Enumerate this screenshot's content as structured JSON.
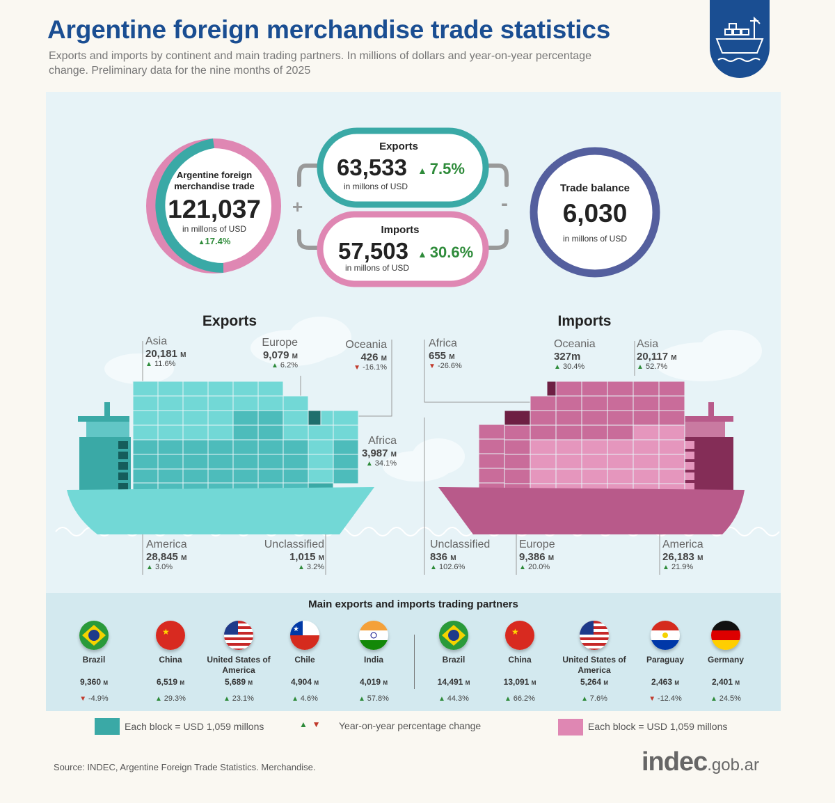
{
  "header": {
    "title": "Argentine foreign merchandise trade statistics",
    "subtitle": "Exports and imports by continent and main trading partners. In millions of dollars and year-on-year percentage change. Preliminary data for the nine months of 2025",
    "badge_icon": "cargo-ship-icon"
  },
  "summary": {
    "total": {
      "label": "Argentine foreign merchandise trade",
      "value": "121,037",
      "unit": "in millons of USD",
      "change": "17.4%"
    },
    "exports": {
      "label": "Exports",
      "value": "63,533",
      "unit": "in millons of USD",
      "change": "7.5%"
    },
    "imports": {
      "label": "Imports",
      "value": "57,503",
      "unit": "in millons of USD",
      "change": "30.6%"
    },
    "balance": {
      "label": "Trade balance",
      "value": "6,030",
      "unit": "in millons of USD"
    },
    "plus_sign": "+",
    "minus_sign": "-",
    "colors": {
      "exports": "#3aa9a6",
      "imports": "#df87b3",
      "balance": "#545f9e"
    }
  },
  "exports_regions": {
    "heading": "Exports",
    "unit_suffix": "M",
    "asia": {
      "name": "Asia",
      "value": "20,181",
      "change": "11.6%"
    },
    "europe": {
      "name": "Europe",
      "value": "9,079",
      "change": "6.2%"
    },
    "oceania": {
      "name": "Oceania",
      "value": "426",
      "change": "-16.1%"
    },
    "africa": {
      "name": "Africa",
      "value": "3,987",
      "change": "34.1%"
    },
    "america": {
      "name": "America",
      "value": "28,845",
      "change": "3.0%"
    },
    "unclassified": {
      "name": "Unclassified",
      "value": "1,015",
      "change": "3.2%"
    }
  },
  "imports_regions": {
    "heading": "Imports",
    "unit_suffix": "M",
    "africa": {
      "name": "Africa",
      "value": "655",
      "change": "-26.6%"
    },
    "oceania": {
      "name": "Oceania",
      "value": "327m",
      "change": "30.4%"
    },
    "asia": {
      "name": "Asia",
      "value": "20,117",
      "change": "52.7%"
    },
    "unclassified": {
      "name": "Unclassified",
      "value": "836",
      "change": "102.6%"
    },
    "europe": {
      "name": "Europe",
      "value": "9,386",
      "change": "20.0%"
    },
    "america": {
      "name": "America",
      "value": "26,183",
      "change": "21.9%"
    }
  },
  "partners": {
    "heading": "Main exports and imports trading partners",
    "unit_suffix": "M",
    "exports": [
      {
        "name": "Brazil",
        "value": "9,360",
        "change": "-4.9%",
        "dir": "down",
        "flag": "brazil-flag-icon"
      },
      {
        "name": "China",
        "value": "6,519",
        "change": "29.3%",
        "dir": "up",
        "flag": "china-flag-icon"
      },
      {
        "name": "United States of America",
        "value": "5,689",
        "change": "23.1%",
        "dir": "up",
        "flag": "usa-flag-icon"
      },
      {
        "name": "Chile",
        "value": "4,904",
        "change": "4.6%",
        "dir": "up",
        "flag": "chile-flag-icon"
      },
      {
        "name": "India",
        "value": "4,019",
        "change": "57.8%",
        "dir": "up",
        "flag": "india-flag-icon"
      }
    ],
    "imports": [
      {
        "name": "Brazil",
        "value": "14,491",
        "change": "44.3%",
        "dir": "up",
        "flag": "brazil-flag-icon"
      },
      {
        "name": "China",
        "value": "13,091",
        "change": "66.2%",
        "dir": "up",
        "flag": "china-flag-icon"
      },
      {
        "name": "United States of America",
        "value": "5,264",
        "change": "7.6%",
        "dir": "up",
        "flag": "usa-flag-icon"
      },
      {
        "name": "Paraguay",
        "value": "2,463",
        "change": "-12.4%",
        "dir": "down",
        "flag": "paraguay-flag-icon"
      },
      {
        "name": "Germany",
        "value": "2,401",
        "change": "24.5%",
        "dir": "up",
        "flag": "germany-flag-icon"
      }
    ]
  },
  "legend": {
    "exports_block": "Each block = USD 1,059 millons",
    "change": "Year-on-year percentage change",
    "imports_block": "Each block = USD 1,059 millons"
  },
  "footer": {
    "source": "Source: INDEC, Argentine Foreign Trade Statistics. Merchandise.",
    "logo_main": "indec",
    "logo_domain": ".gob.ar"
  }
}
